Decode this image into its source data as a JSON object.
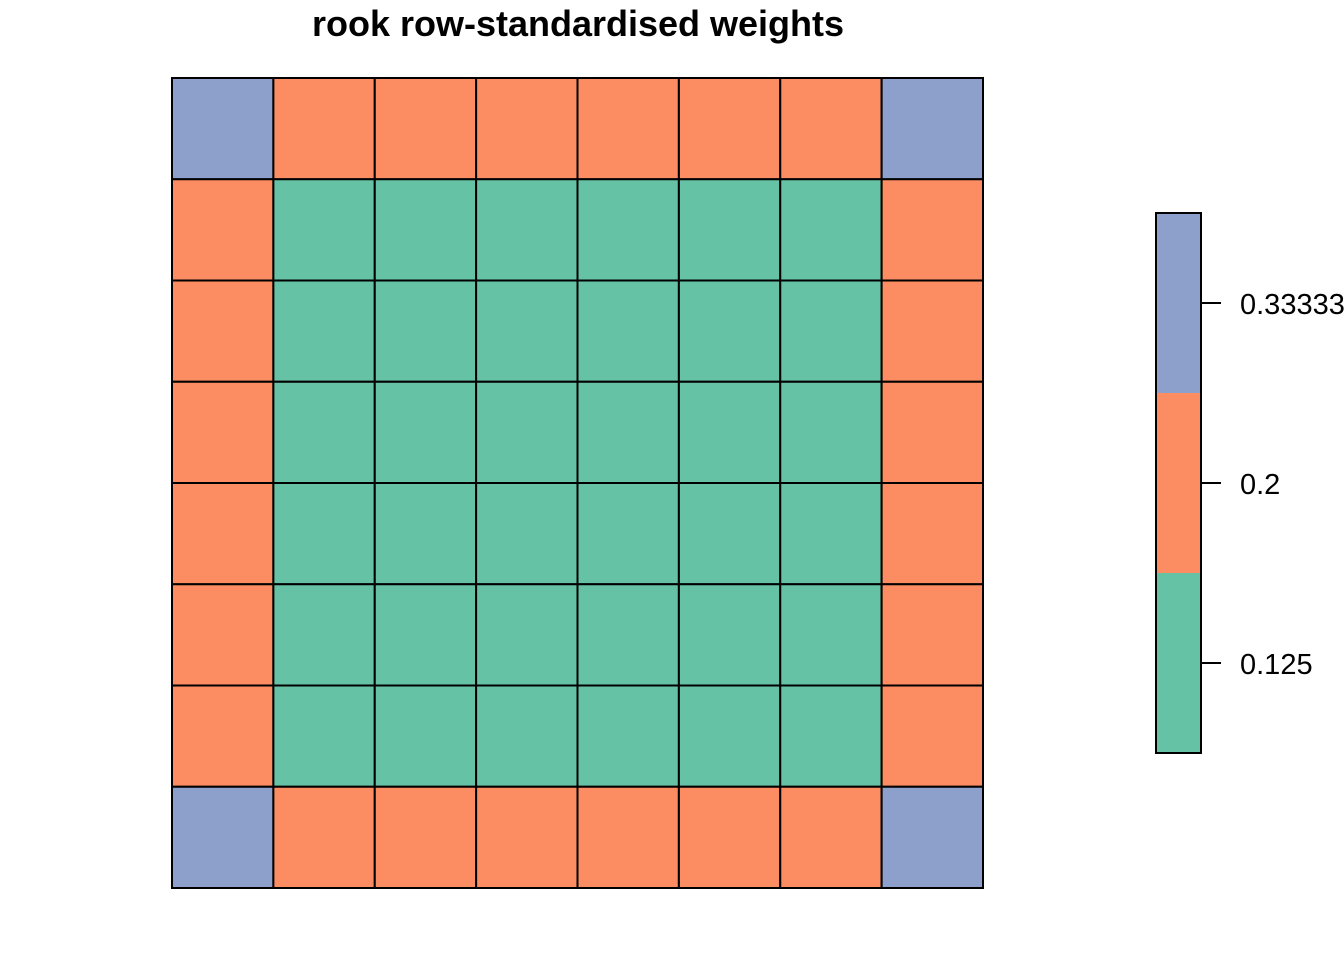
{
  "chart_data": {
    "type": "heatmap",
    "title": "rook row-standardised weights",
    "nrow": 8,
    "ncol": 8,
    "grid": [
      [
        0.333333,
        0.2,
        0.2,
        0.2,
        0.2,
        0.2,
        0.2,
        0.333333
      ],
      [
        0.2,
        0.125,
        0.125,
        0.125,
        0.125,
        0.125,
        0.125,
        0.2
      ],
      [
        0.2,
        0.125,
        0.125,
        0.125,
        0.125,
        0.125,
        0.125,
        0.2
      ],
      [
        0.2,
        0.125,
        0.125,
        0.125,
        0.125,
        0.125,
        0.125,
        0.2
      ],
      [
        0.2,
        0.125,
        0.125,
        0.125,
        0.125,
        0.125,
        0.125,
        0.2
      ],
      [
        0.2,
        0.125,
        0.125,
        0.125,
        0.125,
        0.125,
        0.125,
        0.2
      ],
      [
        0.2,
        0.125,
        0.125,
        0.125,
        0.125,
        0.125,
        0.125,
        0.2
      ],
      [
        0.333333,
        0.2,
        0.2,
        0.2,
        0.2,
        0.2,
        0.2,
        0.333333
      ]
    ],
    "legend": {
      "position": "right",
      "levels": [
        {
          "value": 0.125,
          "label": "0.125",
          "color": "#66c2a5"
        },
        {
          "value": 0.2,
          "label": "0.2",
          "color": "#fc8d62"
        },
        {
          "value": 0.333333,
          "label": "0.33333",
          "color": "#8da0cb"
        }
      ]
    }
  }
}
